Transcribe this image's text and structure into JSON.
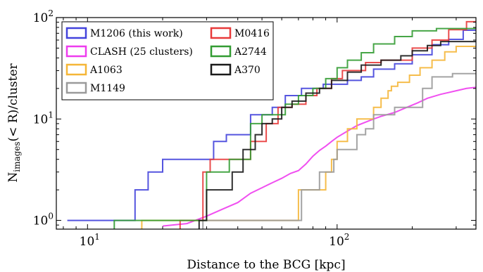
{
  "chart_data": {
    "type": "line",
    "xlabel": "Distance to the BCG [kpc]",
    "ylabel": "N_images(< R)/cluster",
    "ylabel_main": "N",
    "ylabel_sub": "images",
    "ylabel_tail": "(< R)/cluster",
    "x_scale": "log",
    "y_scale": "log",
    "xlim": [
      7.5,
      360
    ],
    "ylim": [
      0.82,
      100
    ],
    "x_ticks": [
      {
        "value": 10,
        "base": "10",
        "exp": "1"
      },
      {
        "value": 100,
        "base": "10",
        "exp": "2"
      }
    ],
    "y_ticks": [
      {
        "value": 1,
        "base": "10",
        "exp": "0"
      },
      {
        "value": 10,
        "base": "10",
        "exp": "1"
      },
      {
        "value": 100,
        "base": "10",
        "exp": "2"
      }
    ],
    "grid": false,
    "legend_position": "top-left",
    "series": [
      {
        "name": "M1206 (this work)",
        "color": "#4343dc",
        "points": [
          [
            8.3,
            1
          ],
          [
            15.5,
            1
          ],
          [
            15.5,
            2
          ],
          [
            17.5,
            2
          ],
          [
            17.5,
            3
          ],
          [
            20,
            3
          ],
          [
            20,
            4
          ],
          [
            32,
            4
          ],
          [
            32,
            6
          ],
          [
            36,
            6
          ],
          [
            36,
            7
          ],
          [
            45,
            7
          ],
          [
            45,
            11
          ],
          [
            55,
            11
          ],
          [
            55,
            13
          ],
          [
            62,
            13
          ],
          [
            62,
            17
          ],
          [
            72,
            17
          ],
          [
            72,
            20
          ],
          [
            88,
            20
          ],
          [
            88,
            22
          ],
          [
            110,
            22
          ],
          [
            110,
            24
          ],
          [
            125,
            24
          ],
          [
            125,
            26
          ],
          [
            140,
            26
          ],
          [
            140,
            31
          ],
          [
            170,
            31
          ],
          [
            170,
            35
          ],
          [
            200,
            35
          ],
          [
            200,
            43
          ],
          [
            240,
            43
          ],
          [
            240,
            54
          ],
          [
            280,
            54
          ],
          [
            280,
            61
          ],
          [
            320,
            61
          ],
          [
            320,
            75
          ],
          [
            360,
            75
          ]
        ]
      },
      {
        "name": "CLASH (25 clusters)",
        "color": "#ee3cee",
        "points": [
          [
            20,
            0.88
          ],
          [
            25,
            0.93
          ],
          [
            30,
            1.1
          ],
          [
            35,
            1.3
          ],
          [
            40,
            1.5
          ],
          [
            45,
            1.85
          ],
          [
            50,
            2.1
          ],
          [
            55,
            2.35
          ],
          [
            60,
            2.6
          ],
          [
            65,
            2.9
          ],
          [
            70,
            3.1
          ],
          [
            75,
            3.6
          ],
          [
            80,
            4.3
          ],
          [
            85,
            4.9
          ],
          [
            90,
            5.4
          ],
          [
            95,
            6
          ],
          [
            100,
            6.6
          ],
          [
            110,
            7.6
          ],
          [
            120,
            8.6
          ],
          [
            130,
            9.3
          ],
          [
            140,
            10
          ],
          [
            150,
            10.6
          ],
          [
            170,
            11.6
          ],
          [
            190,
            13
          ],
          [
            210,
            14.4
          ],
          [
            230,
            16
          ],
          [
            260,
            17.5
          ],
          [
            300,
            19
          ],
          [
            330,
            20
          ],
          [
            360,
            20.5
          ]
        ]
      },
      {
        "name": "A1063",
        "color": "#f5b637",
        "points": [
          [
            16.5,
            0.82
          ],
          [
            16.5,
            1
          ],
          [
            70,
            1
          ],
          [
            70,
            2
          ],
          [
            90,
            2
          ],
          [
            90,
            3
          ],
          [
            95,
            3
          ],
          [
            95,
            4
          ],
          [
            100,
            4
          ],
          [
            100,
            6
          ],
          [
            110,
            6
          ],
          [
            110,
            8
          ],
          [
            120,
            8
          ],
          [
            120,
            10
          ],
          [
            140,
            10
          ],
          [
            140,
            13
          ],
          [
            150,
            13
          ],
          [
            150,
            16
          ],
          [
            160,
            16
          ],
          [
            160,
            19
          ],
          [
            165,
            19
          ],
          [
            165,
            21
          ],
          [
            175,
            21
          ],
          [
            175,
            23
          ],
          [
            195,
            23
          ],
          [
            195,
            27
          ],
          [
            215,
            27
          ],
          [
            215,
            32
          ],
          [
            240,
            32
          ],
          [
            240,
            38
          ],
          [
            270,
            38
          ],
          [
            270,
            46
          ],
          [
            300,
            46
          ],
          [
            300,
            52
          ],
          [
            360,
            52
          ]
        ]
      },
      {
        "name": "M1149",
        "color": "#9a9a9a",
        "points": [
          [
            29,
            0.82
          ],
          [
            29,
            1
          ],
          [
            72,
            1
          ],
          [
            72,
            2
          ],
          [
            85,
            2
          ],
          [
            85,
            3
          ],
          [
            97,
            3
          ],
          [
            97,
            4
          ],
          [
            100,
            4
          ],
          [
            100,
            5
          ],
          [
            120,
            5
          ],
          [
            120,
            7
          ],
          [
            130,
            7
          ],
          [
            130,
            8
          ],
          [
            140,
            8
          ],
          [
            140,
            11
          ],
          [
            170,
            11
          ],
          [
            170,
            13
          ],
          [
            220,
            13
          ],
          [
            220,
            20
          ],
          [
            240,
            20
          ],
          [
            240,
            26
          ],
          [
            290,
            26
          ],
          [
            290,
            28
          ],
          [
            360,
            28
          ]
        ]
      },
      {
        "name": "M0416",
        "color": "#e83a3a",
        "points": [
          [
            23.5,
            0.82
          ],
          [
            23.5,
            1
          ],
          [
            29,
            1
          ],
          [
            29,
            3
          ],
          [
            31,
            3
          ],
          [
            31,
            4
          ],
          [
            45,
            4
          ],
          [
            45,
            6
          ],
          [
            52,
            6
          ],
          [
            52,
            9
          ],
          [
            58,
            9
          ],
          [
            58,
            13
          ],
          [
            66,
            13
          ],
          [
            66,
            14
          ],
          [
            75,
            14
          ],
          [
            75,
            17
          ],
          [
            83,
            17
          ],
          [
            83,
            20
          ],
          [
            95,
            20
          ],
          [
            95,
            25
          ],
          [
            105,
            25
          ],
          [
            105,
            30
          ],
          [
            130,
            30
          ],
          [
            130,
            36
          ],
          [
            150,
            36
          ],
          [
            150,
            38
          ],
          [
            200,
            38
          ],
          [
            200,
            50
          ],
          [
            240,
            50
          ],
          [
            240,
            60
          ],
          [
            280,
            60
          ],
          [
            280,
            76
          ],
          [
            330,
            76
          ],
          [
            330,
            91
          ],
          [
            360,
            91
          ]
        ]
      },
      {
        "name": "A2744",
        "color": "#339c33",
        "points": [
          [
            12.8,
            0.82
          ],
          [
            12.8,
            1
          ],
          [
            30,
            1
          ],
          [
            30,
            3
          ],
          [
            37,
            3
          ],
          [
            37,
            4
          ],
          [
            45,
            4
          ],
          [
            45,
            9
          ],
          [
            50,
            9
          ],
          [
            50,
            11
          ],
          [
            62,
            11
          ],
          [
            62,
            14
          ],
          [
            70,
            14
          ],
          [
            70,
            17
          ],
          [
            80,
            17
          ],
          [
            80,
            20
          ],
          [
            90,
            20
          ],
          [
            90,
            25
          ],
          [
            100,
            25
          ],
          [
            100,
            32
          ],
          [
            110,
            32
          ],
          [
            110,
            38
          ],
          [
            125,
            38
          ],
          [
            125,
            45
          ],
          [
            140,
            45
          ],
          [
            140,
            55
          ],
          [
            170,
            55
          ],
          [
            170,
            65
          ],
          [
            200,
            65
          ],
          [
            200,
            74
          ],
          [
            250,
            74
          ],
          [
            250,
            78
          ],
          [
            360,
            78
          ]
        ]
      },
      {
        "name": "A370",
        "color": "#1a1a1a",
        "points": [
          [
            28,
            0.82
          ],
          [
            28,
            1
          ],
          [
            30,
            1
          ],
          [
            30,
            2
          ],
          [
            38,
            2
          ],
          [
            38,
            3
          ],
          [
            42,
            3
          ],
          [
            42,
            5
          ],
          [
            47,
            5
          ],
          [
            47,
            7
          ],
          [
            50,
            7
          ],
          [
            50,
            9
          ],
          [
            55,
            9
          ],
          [
            55,
            10
          ],
          [
            60,
            10
          ],
          [
            60,
            13
          ],
          [
            66,
            13
          ],
          [
            66,
            15
          ],
          [
            75,
            15
          ],
          [
            75,
            18
          ],
          [
            85,
            18
          ],
          [
            85,
            20
          ],
          [
            95,
            20
          ],
          [
            95,
            24
          ],
          [
            110,
            24
          ],
          [
            110,
            29
          ],
          [
            125,
            29
          ],
          [
            125,
            34
          ],
          [
            150,
            34
          ],
          [
            150,
            38
          ],
          [
            180,
            38
          ],
          [
            180,
            42
          ],
          [
            200,
            42
          ],
          [
            200,
            47
          ],
          [
            230,
            47
          ],
          [
            230,
            53
          ],
          [
            260,
            53
          ],
          [
            260,
            58
          ],
          [
            360,
            58
          ]
        ]
      }
    ]
  }
}
